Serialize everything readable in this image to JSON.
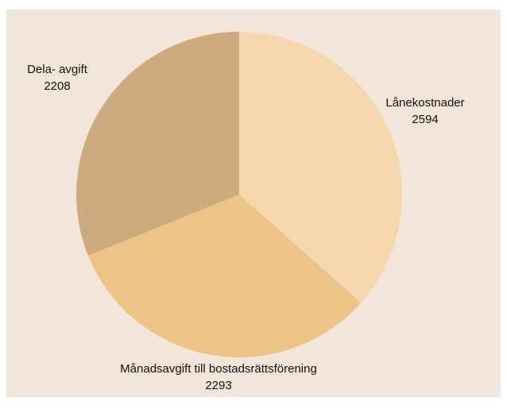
{
  "chart_data": {
    "type": "pie",
    "categories": [
      "Lånekostnader",
      "Månadsavgift till bostadsrättsförening",
      "Dela- avgift"
    ],
    "values": [
      2594,
      2293,
      2208
    ],
    "colors": [
      "#f5d6ad",
      "#ecc488",
      "#ceab7e"
    ]
  }
}
